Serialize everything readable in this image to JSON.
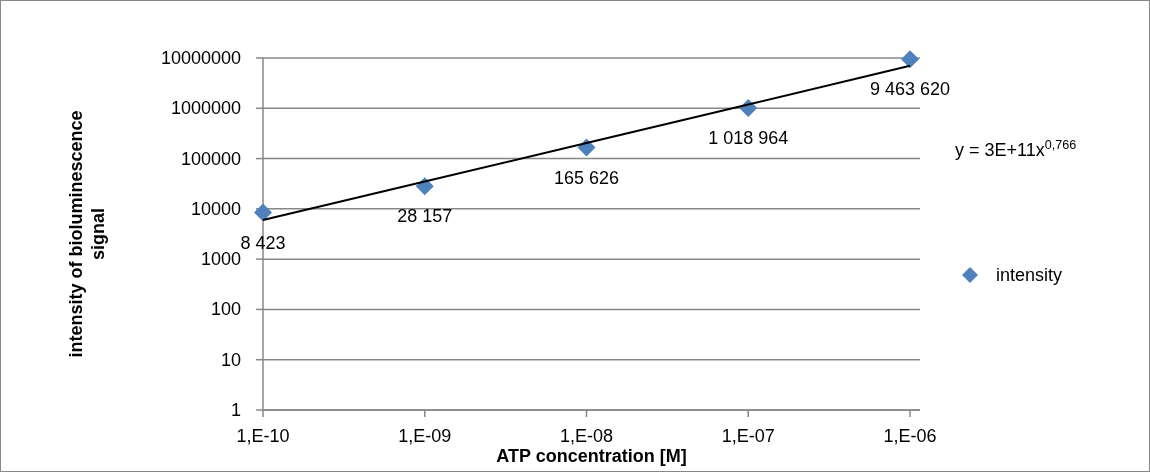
{
  "chart_data": {
    "type": "scatter",
    "xlabel": "ATP concentration [M]",
    "ylabel": "intensity of bioluminescence signal",
    "log": "y",
    "grid": "y",
    "legend": "right",
    "categories": [
      "1,E-10",
      "1,E-09",
      "1,E-08",
      "1,E-07",
      "1,E-06"
    ],
    "ylim": [
      1,
      10000000
    ],
    "yticks": [
      1,
      10,
      100,
      1000,
      10000,
      100000,
      1000000,
      10000000
    ],
    "series": [
      {
        "name": "intensity",
        "color": "#4f81bd",
        "marker": "diamond",
        "values": [
          8423,
          28157,
          165626,
          1018964,
          9463620
        ],
        "value_labels": [
          "8 423",
          "28 157",
          "165 626",
          "1 018 964",
          "9 463 620"
        ]
      },
      {
        "type": "line",
        "color": "#000000",
        "values": [
          6000,
          35000,
          204000,
          1190000,
          7000000
        ]
      }
    ],
    "annotations": [
      "y = 3E+11x$^{0,766}$"
    ]
  }
}
